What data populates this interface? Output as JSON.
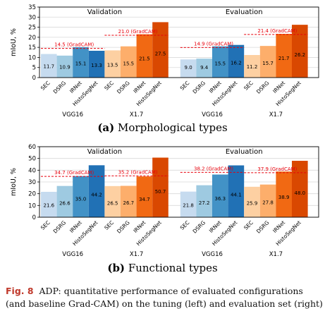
{
  "colors": {
    "vgg16": [
      "#c6dbef",
      "#9ecae1",
      "#4292c6",
      "#2171b5"
    ],
    "x17": [
      "#fdd0a2",
      "#fdae6b",
      "#f16913",
      "#d94801"
    ],
    "gradcam": "#e8000b"
  },
  "chart_data": [
    {
      "type": "bar",
      "ylabel": "mIoU, %",
      "ylim": [
        0,
        35
      ],
      "yticks": [
        0,
        5,
        10,
        15,
        20,
        25,
        30,
        35
      ],
      "grid": true,
      "panels": [
        {
          "label": "Validation",
          "groups": [
            {
              "name": "VGG16",
              "categories": [
                "SEC",
                "DSRG",
                "IRNet",
                "HistoSegNet"
              ],
              "values": [
                11.7,
                10.9,
                15.1,
                13.3
              ],
              "gradcam": 14.5,
              "gradcam_label": "14.5 (GradCAM)"
            },
            {
              "name": "X1.7",
              "categories": [
                "SEC",
                "DSRG",
                "IRNet",
                "HistoSegNet"
              ],
              "values": [
                13.5,
                15.5,
                21.5,
                27.5
              ],
              "gradcam": 21.0,
              "gradcam_label": "21.0 (GradCAM)"
            }
          ]
        },
        {
          "label": "Evaluation",
          "groups": [
            {
              "name": "VGG16",
              "categories": [
                "SEC",
                "DSRG",
                "IRNet",
                "HistoSegNet"
              ],
              "values": [
                9.0,
                9.4,
                15.5,
                16.2
              ],
              "gradcam": 14.9,
              "gradcam_label": "14.9 (GradCAM)"
            },
            {
              "name": "X1.7",
              "categories": [
                "SEC",
                "DSRG",
                "IRNet",
                "HistoSegNet"
              ],
              "values": [
                11.2,
                15.7,
                21.7,
                26.2
              ],
              "gradcam": 21.4,
              "gradcam_label": "21.4 (GradCAM)"
            }
          ]
        }
      ]
    },
    {
      "type": "bar",
      "ylabel": "mIoU, %",
      "ylim": [
        0,
        60
      ],
      "yticks": [
        0,
        10,
        20,
        30,
        40,
        50,
        60
      ],
      "grid": true,
      "panels": [
        {
          "label": "Validation",
          "groups": [
            {
              "name": "VGG16",
              "categories": [
                "SEC",
                "DSRG",
                "IRNet",
                "HistoSegNet"
              ],
              "values": [
                21.6,
                26.6,
                35.0,
                44.2
              ],
              "gradcam": 34.7,
              "gradcam_label": "34.7 (GradCAM)"
            },
            {
              "name": "X1.7",
              "categories": [
                "SEC",
                "DSRG",
                "IRNet",
                "HistoSegNet"
              ],
              "values": [
                26.5,
                26.7,
                34.7,
                50.7
              ],
              "gradcam": 35.2,
              "gradcam_label": "35.2 (GradCAM)"
            }
          ]
        },
        {
          "label": "Evaluation",
          "groups": [
            {
              "name": "VGG16",
              "categories": [
                "SEC",
                "DSRG",
                "IRNet",
                "HistoSegNet"
              ],
              "values": [
                21.8,
                27.2,
                36.3,
                44.1
              ],
              "gradcam": 38.2,
              "gradcam_label": "38.2 (GradCAM)"
            },
            {
              "name": "X1.7",
              "categories": [
                "SEC",
                "DSRG",
                "IRNet",
                "HistoSegNet"
              ],
              "values": [
                25.9,
                27.8,
                38.9,
                48.0
              ],
              "gradcam": 37.9,
              "gradcam_label": "37.9 (GradCAM)"
            }
          ]
        }
      ]
    }
  ],
  "captions": {
    "a_label": "(a)",
    "a_text": "Morphological types",
    "b_label": "(b)",
    "b_text": "Functional types"
  },
  "figure_caption": {
    "label": "Fig. 8",
    "text": "ADP: quantitative performance of evaluated configurations (and baseline Grad-CAM) on the tuning (left) and evaluation set (right)"
  }
}
